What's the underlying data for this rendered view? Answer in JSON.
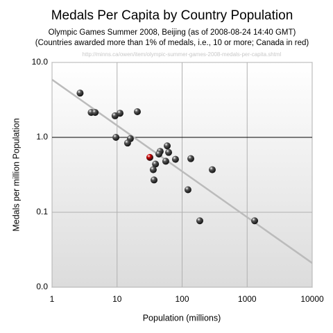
{
  "chart_data": {
    "type": "scatter",
    "title": "Medals Per Capita by Country Population",
    "subtitle": "Olympic Games Summer 2008, Beijing (as of 2008-08-24 14:40 GMT)",
    "subtitle2": "(Countries awarded more than 1% of medals, i.e., 10 or more; Canada in red)",
    "source": "http://minns.ca/owen/item/olympic-summer-games-2008-medals-per-capita.shtml",
    "x_label": "Population (millions)",
    "y_label": "Medals per million Population",
    "x_scale": "log",
    "y_scale": "log",
    "grid": true,
    "xlim": [
      1,
      10000
    ],
    "xticks": [
      1,
      10,
      100,
      1000,
      10000
    ],
    "ylim": [
      0.01,
      10
    ],
    "yticks": [
      {
        "value": 0.01,
        "label": "0.0"
      },
      {
        "value": 0.1,
        "label": "0.1"
      },
      {
        "value": 1,
        "label": "1.0"
      },
      {
        "value": 10,
        "label": "10.0"
      }
    ],
    "x": [
      2.7,
      4.0,
      4.6,
      9.3,
      11.1,
      20.5,
      9.6,
      16,
      14.5,
      31.9,
      46,
      44,
      59,
      62,
      56,
      79,
      39,
      36,
      37,
      136,
      291,
      123,
      187,
      1303
    ],
    "values": [
      3.9,
      2.15,
      2.15,
      1.94,
      2.1,
      2.2,
      1.0,
      0.96,
      0.84,
      0.54,
      0.65,
      0.6,
      0.77,
      0.63,
      0.48,
      0.51,
      0.44,
      0.37,
      0.27,
      0.52,
      0.37,
      0.2,
      0.077,
      0.077
    ],
    "colors": [
      "#555555",
      "#555555",
      "#555555",
      "#555555",
      "#555555",
      "#555555",
      "#555555",
      "#555555",
      "#555555",
      "#cc0000",
      "#555555",
      "#555555",
      "#555555",
      "#555555",
      "#555555",
      "#555555",
      "#555555",
      "#555555",
      "#555555",
      "#555555",
      "#555555",
      "#555555",
      "#555555",
      "#555555"
    ],
    "trendline": {
      "x": [
        1,
        10000
      ],
      "values": [
        5.9,
        0.021
      ],
      "color": "#bbbbbb"
    },
    "reference_line": {
      "value": 1,
      "color": "#000000"
    }
  }
}
